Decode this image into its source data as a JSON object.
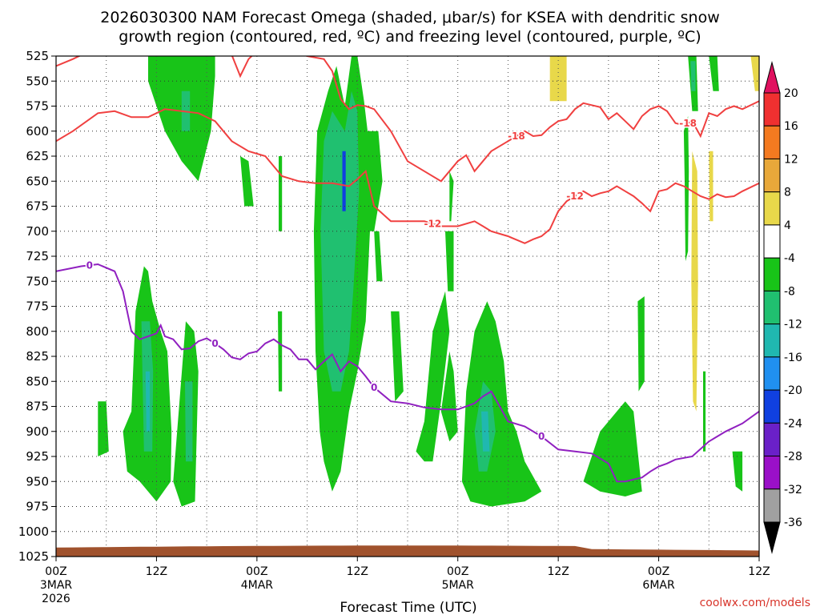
{
  "chart_data": {
    "type": "heatmap",
    "title_line1": "2026030300 NAM Forecast Omega (shaded, μbar/s) for KSEA with dendritic snow",
    "title_line2": "growth region (contoured, red, ºC) and freezing level (contoured, purple, ºC)",
    "xlabel": "Forecast Time (UTC)",
    "ylabel": "",
    "credit": "coolwx.com/models",
    "x_range_hours": [
      0,
      84
    ],
    "y_range_hpa": [
      525,
      1025
    ],
    "y_ticks": [
      "525",
      "550",
      "575",
      "600",
      "625",
      "650",
      "675",
      "700",
      "725",
      "750",
      "775",
      "800",
      "825",
      "850",
      "875",
      "900",
      "925",
      "950",
      "975",
      "1000",
      "1025"
    ],
    "x_ticks": [
      {
        "hour": 0,
        "label": "00Z",
        "date": "3MAR",
        "year": "2026"
      },
      {
        "hour": 12,
        "label": "12Z",
        "date": "",
        "year": ""
      },
      {
        "hour": 24,
        "label": "00Z",
        "date": "4MAR",
        "year": ""
      },
      {
        "hour": 36,
        "label": "12Z",
        "date": "",
        "year": ""
      },
      {
        "hour": 48,
        "label": "00Z",
        "date": "5MAR",
        "year": ""
      },
      {
        "hour": 60,
        "label": "12Z",
        "date": "",
        "year": ""
      },
      {
        "hour": 72,
        "label": "00Z",
        "date": "6MAR",
        "year": ""
      },
      {
        "hour": 84,
        "label": "12Z",
        "date": "",
        "year": ""
      }
    ],
    "colorbar": {
      "labels": [
        "20",
        "16",
        "12",
        "8",
        "4",
        "-4",
        "-8",
        "-12",
        "-16",
        "-20",
        "-24",
        "-28",
        "-32",
        "-36"
      ],
      "colors": [
        "#e0115f",
        "#f03030",
        "#f47a20",
        "#e8a83a",
        "#e8d84a",
        "#ffffff",
        "#18c418",
        "#20c070",
        "#20b8b0",
        "#2090f0",
        "#1040e0",
        "#6a20c8",
        "#9a10c8",
        "#a0a0a0",
        "#000000"
      ]
    },
    "series": [
      {
        "name": "-12 ºC isotherm",
        "color": "#f04040",
        "label": "-12",
        "x": [
          0,
          2,
          5,
          7,
          9,
          11,
          13,
          15,
          17,
          19,
          21,
          23,
          25,
          27,
          29,
          31,
          33,
          35,
          36,
          37,
          38,
          40,
          42,
          44,
          46,
          48,
          50,
          51,
          52,
          54,
          56,
          57,
          58,
          59,
          60,
          61,
          62,
          63,
          64,
          65,
          66,
          67,
          68,
          69,
          70,
          71,
          72,
          73,
          74,
          75,
          76,
          77,
          78,
          79,
          80,
          81,
          82,
          84
        ],
        "y": [
          610,
          600,
          582,
          580,
          586,
          586,
          578,
          580,
          582,
          590,
          610,
          620,
          625,
          645,
          650,
          652,
          652,
          655,
          648,
          640,
          675,
          690,
          690,
          690,
          695,
          695,
          690,
          695,
          700,
          705,
          712,
          708,
          705,
          698,
          680,
          670,
          665,
          660,
          665,
          662,
          660,
          655,
          660,
          665,
          672,
          680,
          660,
          658,
          652,
          655,
          660,
          665,
          668,
          663,
          666,
          665,
          660,
          652
        ]
      },
      {
        "name": "-18 ºC isotherm",
        "color": "#f04040",
        "label": "-18",
        "x": [
          0,
          2,
          4,
          6,
          8,
          10,
          12,
          14,
          16,
          18,
          20,
          21,
          22,
          23,
          24,
          26,
          28,
          30,
          32,
          33,
          34,
          35,
          36,
          37,
          38,
          40,
          42,
          44,
          46,
          48,
          49,
          50,
          52,
          54,
          56,
          57,
          58,
          59,
          60,
          61,
          62,
          63,
          64,
          65,
          66,
          67,
          68,
          69,
          70,
          71,
          72,
          73,
          74,
          75,
          76,
          77,
          78,
          79,
          80,
          81,
          82,
          84
        ],
        "y": [
          535,
          528,
          520,
          522,
          521,
          522,
          518,
          520,
          522,
          520,
          518,
          524,
          545,
          528,
          520,
          518,
          520,
          525,
          528,
          540,
          568,
          578,
          574,
          575,
          578,
          600,
          630,
          640,
          650,
          630,
          624,
          640,
          620,
          610,
          600,
          605,
          604,
          596,
          590,
          588,
          578,
          572,
          574,
          576,
          588,
          582,
          590,
          598,
          585,
          578,
          575,
          580,
          592,
          594,
          590,
          605,
          582,
          585,
          578,
          575,
          578,
          570
        ]
      },
      {
        "name": "0 ºC freezing level",
        "color": "#9020c0",
        "label": "0",
        "x": [
          0,
          3,
          5,
          7,
          8,
          8.5,
          9,
          10,
          11,
          12,
          12.5,
          13,
          14,
          15,
          16,
          17,
          18,
          19,
          20,
          21,
          22,
          23,
          24,
          25,
          26,
          27,
          28,
          29,
          30,
          31,
          32,
          33,
          34,
          35,
          36,
          37,
          38,
          40,
          42,
          44,
          46,
          48,
          50,
          51,
          52,
          53,
          54,
          56,
          58,
          60,
          62,
          64,
          66,
          67,
          68,
          69,
          70,
          71,
          72,
          73,
          74,
          76,
          78,
          80,
          82,
          84
        ],
        "y": [
          740,
          735,
          733,
          740,
          760,
          780,
          800,
          808,
          805,
          802,
          794,
          805,
          808,
          818,
          817,
          810,
          807,
          812,
          818,
          826,
          828,
          822,
          820,
          812,
          808,
          814,
          818,
          828,
          828,
          838,
          830,
          823,
          840,
          830,
          835,
          845,
          856,
          870,
          872,
          876,
          878,
          878,
          872,
          865,
          860,
          875,
          890,
          895,
          905,
          918,
          920,
          922,
          932,
          950,
          950,
          948,
          946,
          940,
          935,
          932,
          928,
          925,
          910,
          900,
          892,
          880
        ]
      }
    ],
    "omega_regions": [
      {
        "level": "-4",
        "color": "#18c418",
        "x": [
          12,
          14,
          17,
          20,
          24,
          26,
          28,
          30,
          32,
          34,
          35,
          35.5,
          36,
          37,
          38,
          40,
          41,
          42,
          45,
          47,
          48,
          50,
          52,
          55,
          58,
          60,
          64,
          66,
          68,
          70,
          72,
          74,
          76,
          78
        ],
        "note": "main precipitation-lift column boundaries"
      },
      {
        "level": "4",
        "color": "#e8d84a",
        "note": "weak sinking patches near hour 59 and hour 77"
      }
    ]
  }
}
